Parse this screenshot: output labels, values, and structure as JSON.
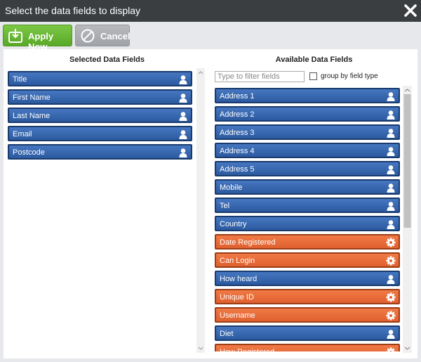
{
  "header": {
    "title": "Select the data fields to display"
  },
  "toolbar": {
    "apply": "Apply Now",
    "cancel": "Cancel"
  },
  "selected": {
    "heading": "Selected Data Fields",
    "items": [
      {
        "label": "Title",
        "icon": "user"
      },
      {
        "label": "First Name",
        "icon": "user"
      },
      {
        "label": "Last Name",
        "icon": "user"
      },
      {
        "label": "Email",
        "icon": "user"
      },
      {
        "label": "Postcode",
        "icon": "user"
      }
    ]
  },
  "available": {
    "heading": "Available Data Fields",
    "filter_placeholder": "Type to filter fields",
    "group_label": "group by field type",
    "items": [
      {
        "label": "Address 1",
        "icon": "user"
      },
      {
        "label": "Address 2",
        "icon": "user"
      },
      {
        "label": "Address 3",
        "icon": "user"
      },
      {
        "label": "Address 4",
        "icon": "user"
      },
      {
        "label": "Address 5",
        "icon": "user"
      },
      {
        "label": "Mobile",
        "icon": "user"
      },
      {
        "label": "Tel",
        "icon": "user"
      },
      {
        "label": "Country",
        "icon": "user"
      },
      {
        "label": "Date Registered",
        "icon": "gear"
      },
      {
        "label": "Can Login",
        "icon": "gear"
      },
      {
        "label": "How heard",
        "icon": "user"
      },
      {
        "label": "Unique ID",
        "icon": "gear"
      },
      {
        "label": "Username",
        "icon": "gear"
      },
      {
        "label": "Diet",
        "icon": "user"
      },
      {
        "label": "How Registered",
        "icon": "gear"
      }
    ]
  }
}
